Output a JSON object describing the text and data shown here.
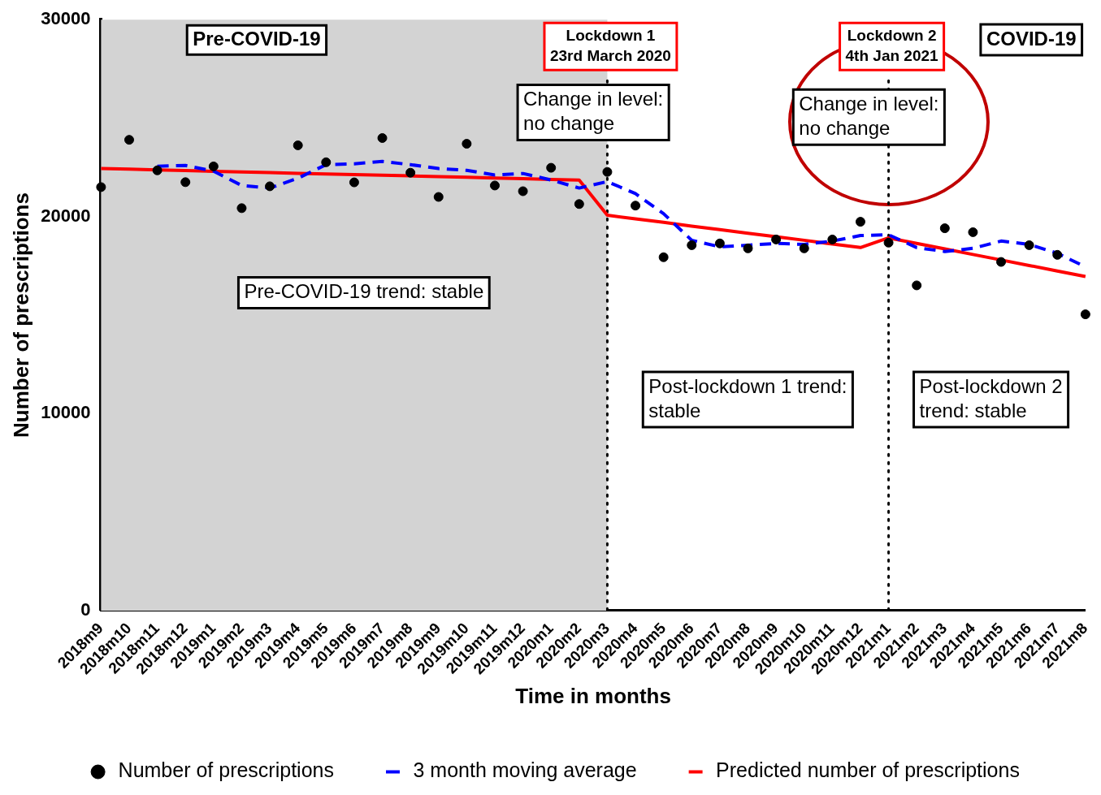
{
  "chart_data": {
    "type": "line",
    "xlabel": "Time in months",
    "ylabel": "Number of prescriptions",
    "categories": [
      "2018m9",
      "2018m10",
      "2018m11",
      "2018m12",
      "2019m1",
      "2019m2",
      "2019m3",
      "2019m4",
      "2019m5",
      "2019m6",
      "2019m7",
      "2019m8",
      "2019m9",
      "2019m10",
      "2019m11",
      "2019m12",
      "2020m1",
      "2020m2",
      "2020m3",
      "2020m4",
      "2020m5",
      "2020m6",
      "2020m7",
      "2020m8",
      "2020m9",
      "2020m10",
      "2020m11",
      "2020m12",
      "2021m1",
      "2021m2",
      "2021m3",
      "2021m4",
      "2021m5",
      "2021m6",
      "2021m7",
      "2021m8"
    ],
    "series": [
      {
        "name": "Number of prescriptions",
        "type": "scatter",
        "color": "#000000",
        "marker": "circle",
        "values": [
          21500,
          23900,
          22350,
          21750,
          22550,
          20430,
          21540,
          23620,
          22760,
          21740,
          23990,
          22230,
          21000,
          23700,
          21580,
          21290,
          22480,
          20640,
          22270,
          20560,
          17940,
          18550,
          18640,
          18390,
          18840,
          18390,
          18840,
          19740,
          18680,
          16510,
          19410,
          19210,
          17700,
          18550,
          18060,
          15040
        ]
      },
      {
        "name": "3 month moving average",
        "color": "#0000ff",
        "line_style": "dashed",
        "values": [
          null,
          null,
          22560,
          22600,
          22310,
          21580,
          21450,
          21950,
          22640,
          22680,
          22800,
          22640,
          22440,
          22350,
          22110,
          22190,
          21860,
          21450,
          21780,
          21170,
          20150,
          18800,
          18470,
          18550,
          18640,
          18590,
          18760,
          19040,
          19080,
          18430,
          18230,
          18390,
          18760,
          18590,
          18140,
          17450
        ]
      },
      {
        "name": "Predicted number of prescriptions",
        "color": "#ff0000",
        "line_style": "solid",
        "values": [
          22440,
          22410,
          22370,
          22340,
          22300,
          22270,
          22240,
          22200,
          22170,
          22130,
          22100,
          22070,
          22030,
          22000,
          21960,
          21930,
          21890,
          21860,
          20070,
          19890,
          19710,
          19520,
          19340,
          19160,
          18980,
          18800,
          18610,
          18430,
          18920,
          18640,
          18360,
          18080,
          17800,
          17520,
          17240,
          16960
        ]
      }
    ],
    "ylim": [
      0,
      30000
    ],
    "yticks": [
      0,
      10000,
      20000,
      30000
    ],
    "grid": false,
    "legend": "bottom",
    "bands": [
      {
        "axis": "x",
        "from": "2018m9",
        "to": "2020m3",
        "label": "Pre-COVID-19",
        "color": "#d3d3d3"
      }
    ],
    "ref_lines": [
      {
        "axis": "x",
        "value": "2020m3",
        "label": "Lockdown 1\n23rd March 2020",
        "color": "#000000",
        "line_style": "dotted"
      },
      {
        "axis": "x",
        "value": "2021m1",
        "label": "Lockdown 2\n4th Jan 2021",
        "color": "#000000",
        "line_style": "dotted"
      }
    ],
    "annotations": [
      "COVID-19",
      "Change in level:\nno change",
      "Change in level:\nno change",
      "Pre-COVID-19 trend: stable",
      "Post-lockdown 1 trend:\nstable",
      "Post-lockdown 2\ntrend: stable"
    ]
  }
}
